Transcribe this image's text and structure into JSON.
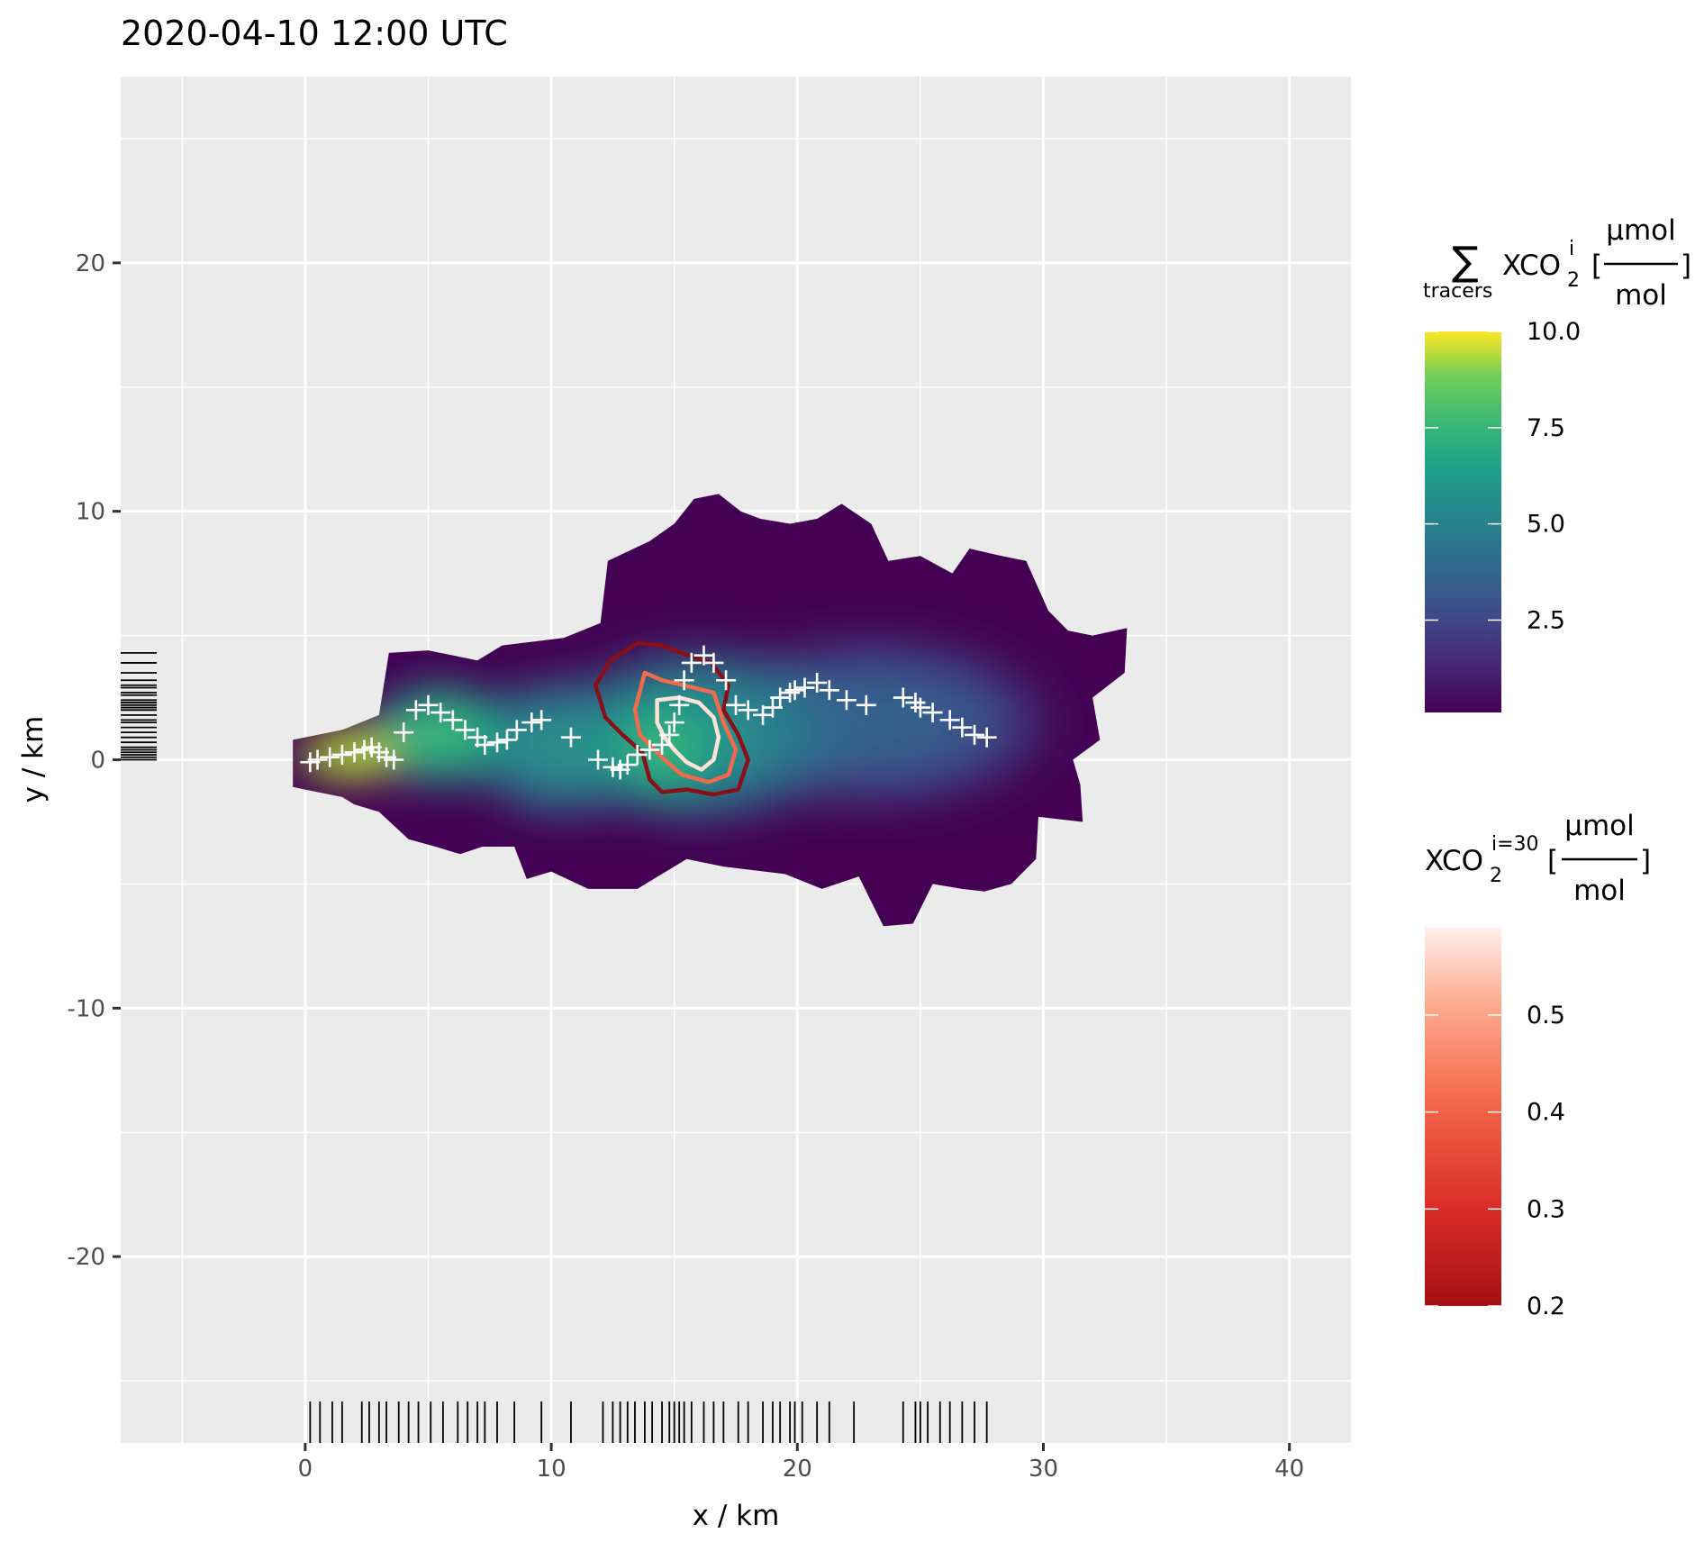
{
  "chart_data": {
    "type": "heatmap",
    "title": "2020-04-10 12:00 UTC",
    "xlabel": "x / km",
    "ylabel": "y / km",
    "xlim": [
      -7.5,
      42.5
    ],
    "ylim": [
      -27.5,
      27.5
    ],
    "x_ticks": [
      0,
      10,
      20,
      30,
      40
    ],
    "x_tick_labels": [
      "0",
      "10",
      "20",
      "30",
      "40"
    ],
    "y_ticks": [
      -20,
      -10,
      0,
      10,
      20
    ],
    "y_tick_labels": [
      "-20",
      "-10",
      "0",
      "10",
      "20"
    ],
    "grid": true,
    "background": "#ebebeb",
    "plume_outline": [
      [
        -0.5,
        0.8
      ],
      [
        1.5,
        1.2
      ],
      [
        3,
        1.8
      ],
      [
        3.4,
        4.3
      ],
      [
        5,
        4.4
      ],
      [
        7,
        4.0
      ],
      [
        8,
        4.6
      ],
      [
        10.5,
        4.9
      ],
      [
        12,
        5.5
      ],
      [
        12.3,
        8
      ],
      [
        14,
        8.8
      ],
      [
        15,
        9.5
      ],
      [
        15.8,
        10.5
      ],
      [
        16.8,
        10.7
      ],
      [
        17.7,
        10
      ],
      [
        18.5,
        9.7
      ],
      [
        19.7,
        9.5
      ],
      [
        20.8,
        9.7
      ],
      [
        21.8,
        10.3
      ],
      [
        23,
        9.5
      ],
      [
        23.7,
        8
      ],
      [
        25,
        8.2
      ],
      [
        26.3,
        7.5
      ],
      [
        27,
        8.5
      ],
      [
        28.3,
        8.2
      ],
      [
        29.3,
        8
      ],
      [
        30.2,
        6
      ],
      [
        31,
        5.2
      ],
      [
        32,
        5.0
      ],
      [
        33.4,
        5.3
      ],
      [
        33.3,
        3.5
      ],
      [
        32,
        2.5
      ],
      [
        32.3,
        0.8
      ],
      [
        31.2,
        0
      ],
      [
        31.5,
        -1
      ],
      [
        31.6,
        -2.5
      ],
      [
        29.8,
        -2.3
      ],
      [
        29.7,
        -4
      ],
      [
        28.7,
        -5
      ],
      [
        27.6,
        -5.3
      ],
      [
        26.7,
        -5.2
      ],
      [
        25.5,
        -5.0
      ],
      [
        24.7,
        -6.6
      ],
      [
        23.5,
        -6.7
      ],
      [
        22.5,
        -4.7
      ],
      [
        21,
        -5.2
      ],
      [
        19.5,
        -4.6
      ],
      [
        17,
        -4.3
      ],
      [
        15.5,
        -4.0
      ],
      [
        13.5,
        -5.2
      ],
      [
        11.5,
        -5.2
      ],
      [
        10,
        -4.5
      ],
      [
        9,
        -4.8
      ],
      [
        8.5,
        -3.5
      ],
      [
        7.2,
        -3.5
      ],
      [
        6.3,
        -3.8
      ],
      [
        5.3,
        -3.5
      ],
      [
        4.2,
        -3.2
      ],
      [
        3,
        -2.1
      ],
      [
        2,
        -1.8
      ],
      [
        1.5,
        -1.5
      ],
      [
        0,
        -1.2
      ],
      [
        -0.5,
        -1.1
      ]
    ],
    "rug_x": [
      0.2,
      0.6,
      1.1,
      1.5,
      2.3,
      2.6,
      3.0,
      3.3,
      3.8,
      4.2,
      4.6,
      5.1,
      5.6,
      6.2,
      6.6,
      7.0,
      7.3,
      7.8,
      8.5,
      9.6,
      10.8,
      12.1,
      12.5,
      12.8,
      13.1,
      13.4,
      13.8,
      14.1,
      14.5,
      14.8,
      15.0,
      15.2,
      15.4,
      15.7,
      16.2,
      16.6,
      17.0,
      17.6,
      18.0,
      18.6,
      19.0,
      19.3,
      19.7,
      19.9,
      20.2,
      20.8,
      21.3,
      22.3,
      24.3,
      24.8,
      25.0,
      25.3,
      25.8,
      26.2,
      26.7,
      27.2,
      27.7
    ],
    "rug_y": [
      0.0,
      0.1,
      0.2,
      0.3,
      0.4,
      0.5,
      0.7,
      0.9,
      1.1,
      1.3,
      1.5,
      1.6,
      1.8,
      2.0,
      2.1,
      2.2,
      2.3,
      2.4,
      2.6,
      2.7,
      2.9,
      3.0,
      3.2,
      3.5,
      3.9,
      4.3
    ],
    "crosses": [
      [
        0.2,
        -0.1
      ],
      [
        0.5,
        0
      ],
      [
        1,
        0.1
      ],
      [
        1.5,
        0.2
      ],
      [
        2,
        0.3
      ],
      [
        2.4,
        0.4
      ],
      [
        2.7,
        0.5
      ],
      [
        3.0,
        0.3
      ],
      [
        3.3,
        0.1
      ],
      [
        3.6,
        0
      ],
      [
        4.0,
        1.1
      ],
      [
        4.5,
        2.0
      ],
      [
        5.0,
        2.2
      ],
      [
        5.5,
        1.9
      ],
      [
        6.0,
        1.6
      ],
      [
        6.5,
        1.2
      ],
      [
        7.0,
        0.9
      ],
      [
        7.3,
        0.6
      ],
      [
        7.8,
        0.7
      ],
      [
        8.2,
        0.8
      ],
      [
        8.6,
        1.2
      ],
      [
        9.2,
        1.5
      ],
      [
        9.6,
        1.6
      ],
      [
        10.8,
        0.9
      ],
      [
        11.9,
        0.0
      ],
      [
        12.5,
        -0.3
      ],
      [
        12.8,
        -0.4
      ],
      [
        13.1,
        -0.2
      ],
      [
        13.5,
        0.2
      ],
      [
        14.0,
        0.4
      ],
      [
        14.5,
        0.6
      ],
      [
        14.8,
        1.0
      ],
      [
        15.0,
        1.5
      ],
      [
        15.2,
        2.2
      ],
      [
        15.4,
        3.2
      ],
      [
        15.7,
        3.9
      ],
      [
        16.2,
        4.2
      ],
      [
        16.6,
        3.9
      ],
      [
        17.1,
        3.2
      ],
      [
        17.5,
        2.2
      ],
      [
        18.0,
        2.0
      ],
      [
        18.6,
        1.8
      ],
      [
        19.0,
        2.1
      ],
      [
        19.3,
        2.5
      ],
      [
        19.7,
        2.7
      ],
      [
        19.9,
        2.8
      ],
      [
        20.3,
        2.9
      ],
      [
        20.8,
        3.1
      ],
      [
        21.3,
        2.8
      ],
      [
        22.0,
        2.4
      ],
      [
        22.8,
        2.2
      ],
      [
        24.3,
        2.5
      ],
      [
        24.8,
        2.3
      ],
      [
        25.0,
        2.1
      ],
      [
        25.5,
        1.9
      ],
      [
        26.2,
        1.6
      ],
      [
        26.7,
        1.3
      ],
      [
        27.2,
        1.0
      ],
      [
        27.7,
        0.9
      ]
    ],
    "contours": [
      {
        "level": 0.2,
        "color": "#8a0f17",
        "path": [
          [
            11.8,
            3.0
          ],
          [
            12.4,
            4.0
          ],
          [
            13.5,
            4.7
          ],
          [
            14.5,
            4.6
          ],
          [
            15.3,
            4.3
          ],
          [
            16.5,
            3.9
          ],
          [
            17.2,
            3.0
          ],
          [
            17.0,
            2.0
          ],
          [
            17.6,
            1.0
          ],
          [
            18.0,
            0.0
          ],
          [
            17.6,
            -1.2
          ],
          [
            16.6,
            -1.4
          ],
          [
            15.5,
            -1.2
          ],
          [
            14.5,
            -1.3
          ],
          [
            14.0,
            -0.8
          ],
          [
            13.7,
            0.3
          ],
          [
            12.9,
            1.0
          ],
          [
            12.2,
            1.7
          ],
          [
            11.8,
            3.0
          ]
        ]
      },
      {
        "level": 0.4,
        "color": "#f16a4c",
        "path": [
          [
            13.8,
            3.5
          ],
          [
            14.5,
            3.2
          ],
          [
            15.4,
            3.0
          ],
          [
            16.6,
            2.7
          ],
          [
            17.0,
            1.5
          ],
          [
            17.5,
            0.4
          ],
          [
            17.2,
            -0.6
          ],
          [
            16.4,
            -0.9
          ],
          [
            15.3,
            -0.6
          ],
          [
            14.6,
            0.0
          ],
          [
            13.6,
            1.0
          ],
          [
            13.4,
            2.0
          ],
          [
            13.8,
            3.5
          ]
        ]
      },
      {
        "level": 0.55,
        "color": "#fce3d6",
        "path": [
          [
            14.3,
            2.4
          ],
          [
            15.2,
            2.5
          ],
          [
            16.0,
            2.3
          ],
          [
            16.6,
            1.7
          ],
          [
            16.8,
            0.9
          ],
          [
            16.6,
            0.0
          ],
          [
            16.1,
            -0.4
          ],
          [
            15.5,
            -0.1
          ],
          [
            15.0,
            0.4
          ],
          [
            14.6,
            0.9
          ],
          [
            14.3,
            1.5
          ],
          [
            14.3,
            2.4
          ]
        ]
      }
    ],
    "legend_fill": {
      "title_symbol": "∑",
      "title_sub": "tracers",
      "title_main": "XCO",
      "title_subscript": "2",
      "title_superscript": "i",
      "title_bracket_open": "[",
      "title_bracket_close": "]",
      "unit_numerator": "µmol",
      "unit_denominator": "mol",
      "scale": "viridis",
      "min": 0.1,
      "max": 10.0,
      "ticks": [
        2.5,
        5.0,
        7.5,
        10.0
      ],
      "tick_labels": [
        "2.5",
        "5.0",
        "7.5",
        "10.0"
      ]
    },
    "legend_color": {
      "title_main": "XCO",
      "title_subscript": "2",
      "title_superscript": "i=30",
      "title_bracket_open": "[",
      "title_bracket_close": "]",
      "unit_numerator": "µmol",
      "unit_denominator": "mol",
      "scale": "reds",
      "min": 0.2,
      "max": 0.59,
      "ticks": [
        0.2,
        0.3,
        0.4,
        0.5
      ],
      "tick_labels": [
        "0.2",
        "0.3",
        "0.4",
        "0.5"
      ]
    }
  }
}
